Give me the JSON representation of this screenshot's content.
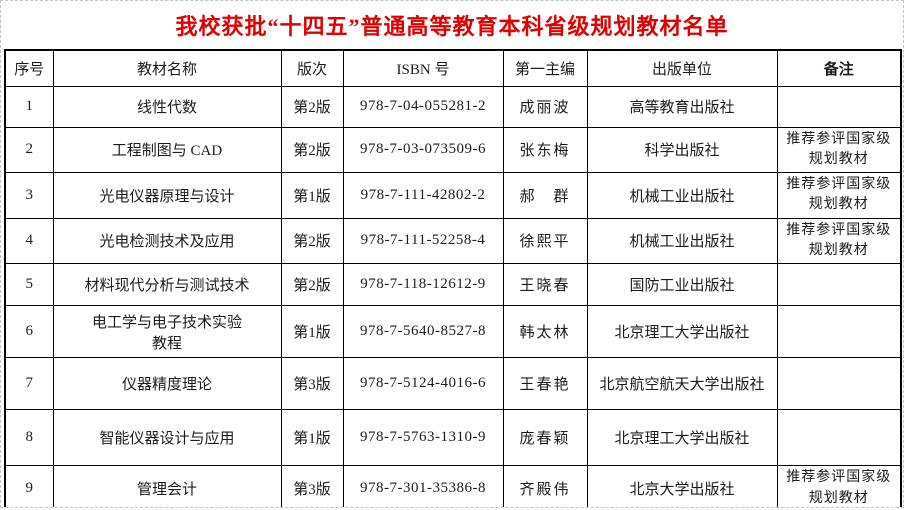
{
  "page": {
    "title": "我校获批“十四五”普通高等教育本科省级规划教材名单",
    "title_color": "#e00000",
    "border_color": "#000000"
  },
  "table": {
    "headers": {
      "no": "序号",
      "name": "教材名称",
      "edition": "版次",
      "isbn": "ISBN 号",
      "editor": "第一主编",
      "publisher": "出版单位",
      "remark": "备注"
    },
    "rows": [
      {
        "no": "1",
        "name": "线性代数",
        "edition": "第2版",
        "isbn": "978-7-04-055281-2",
        "editor": "成丽波",
        "publisher": "高等教育出版社",
        "remark": ""
      },
      {
        "no": "2",
        "name": "工程制图与 CAD",
        "edition": "第2版",
        "isbn": "978-7-03-073509-6",
        "editor": "张东梅",
        "publisher": "科学出版社",
        "remark": "推荐参评国家级规划教材"
      },
      {
        "no": "3",
        "name": "光电仪器原理与设计",
        "edition": "第1版",
        "isbn": "978-7-111-42802-2",
        "editor": "郝　群",
        "publisher": "机械工业出版社",
        "remark": "推荐参评国家级规划教材"
      },
      {
        "no": "4",
        "name": "光电检测技术及应用",
        "edition": "第2版",
        "isbn": "978-7-111-52258-4",
        "editor": "徐熙平",
        "publisher": "机械工业出版社",
        "remark": "推荐参评国家级规划教材"
      },
      {
        "no": "5",
        "name": "材料现代分析与测试技术",
        "edition": "第2版",
        "isbn": "978-7-118-12612-9",
        "editor": "王晓春",
        "publisher": "国防工业出版社",
        "remark": ""
      },
      {
        "no": "6",
        "name": "电工学与电子技术实验\n教程",
        "edition": "第1版",
        "isbn": "978-7-5640-8527-8",
        "editor": "韩太林",
        "publisher": "北京理工大学出版社",
        "remark": ""
      },
      {
        "no": "7",
        "name": "仪器精度理论",
        "edition": "第3版",
        "isbn": "978-7-5124-4016-6",
        "editor": "王春艳",
        "publisher": "北京航空航天大学出版社",
        "remark": ""
      },
      {
        "no": "8",
        "name": "智能仪器设计与应用",
        "edition": "第1版",
        "isbn": "978-7-5763-1310-9",
        "editor": "庞春颖",
        "publisher": "北京理工大学出版社",
        "remark": ""
      },
      {
        "no": "9",
        "name": "管理会计",
        "edition": "第3版",
        "isbn": "978-7-301-35386-8",
        "editor": "齐殿伟",
        "publisher": "北京大学出版社",
        "remark": "推荐参评国家级规划教材"
      }
    ]
  }
}
